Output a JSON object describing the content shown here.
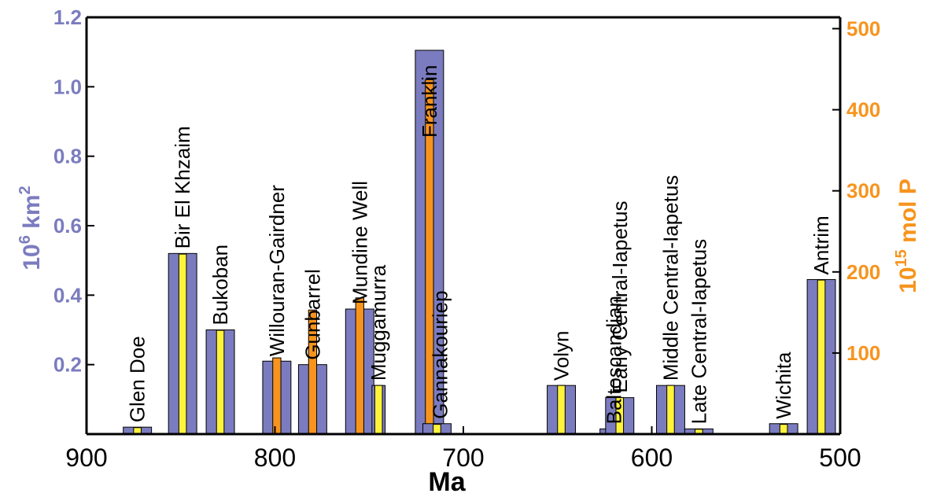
{
  "colors": {
    "area": "#7b7cbf",
    "phosphorus_major": "#f7941d",
    "phosphorus_minor": "#fff33b",
    "left_axis": "#7b7cbf",
    "right_axis": "#f7941d",
    "axis_line": "#000000"
  },
  "chart_data": {
    "type": "bar",
    "xlabel": "Ma",
    "ylabel_left_base": "10",
    "ylabel_left_exp": "6",
    "ylabel_left_unit": " km",
    "ylabel_left_unit_exp": "2",
    "ylabel_right_base": "10",
    "ylabel_right_exp": "15",
    "ylabel_right_unit": " mol P",
    "xlim": [
      900,
      500
    ],
    "ylim_left": [
      0,
      1.2
    ],
    "ylim_right": [
      0,
      514
    ],
    "xticks": [
      900,
      800,
      700,
      600,
      500
    ],
    "yticks_left": [
      0.2,
      0.4,
      0.6,
      0.8,
      1.0,
      1.2
    ],
    "yticks_left_labels": [
      "0.2",
      "0.4",
      "0.6",
      "0.8",
      "1.0",
      "1.2"
    ],
    "yticks_right": [
      100,
      200,
      300,
      400,
      500
    ],
    "yticks_right_labels": [
      "100",
      "200",
      "300",
      "400",
      "500"
    ],
    "series": [
      {
        "name": "",
        "axis": "left"
      },
      {
        "name": "",
        "axis": "right"
      }
    ],
    "provinces": [
      {
        "name": "Glen Doe",
        "age": 873,
        "area_width_ma": 15,
        "area": 0.02,
        "p": 8,
        "p_color": "minor"
      },
      {
        "name": "Bir El Khzaim",
        "age": 849,
        "area_width_ma": 15,
        "area": 0.52,
        "p": 222,
        "p_color": "minor"
      },
      {
        "name": "Bukoban",
        "age": 829,
        "area_width_ma": 15,
        "area": 0.3,
        "p": 128,
        "p_color": "minor"
      },
      {
        "name": "Willouran-Gairdner",
        "age": 799,
        "area_width_ma": 15,
        "area": 0.21,
        "p": 94,
        "p_color": "major"
      },
      {
        "name": "Gunbarrel",
        "age": 780,
        "area_width_ma": 15,
        "area": 0.2,
        "p": 153,
        "p_color": "major"
      },
      {
        "name": "Mundine Well",
        "age": 755,
        "area_width_ma": 15,
        "area": 0.36,
        "p": 168,
        "p_color": "major"
      },
      {
        "name": "Muggamurra",
        "age": 745,
        "area_width_ma": 7,
        "area": 0.14,
        "p": 60,
        "p_color": "minor"
      },
      {
        "name": "Franklin",
        "age": 718,
        "area_width_ma": 15,
        "area": 1.105,
        "p": 437,
        "p_color": "major"
      },
      {
        "name": "Gannakouriep",
        "age": 714,
        "area_width_ma": 15,
        "area": 0.03,
        "p": 12,
        "p_color": "minor"
      },
      {
        "name": "Volyn",
        "age": 648,
        "area_width_ma": 15,
        "area": 0.14,
        "p": 60,
        "p_color": "minor"
      },
      {
        "name": "Baltoscandian",
        "age": 620,
        "area_width_ma": 15,
        "area": 0.015,
        "p": 6,
        "p_color": "minor"
      },
      {
        "name": "Early Central-Iapetus",
        "age": 617,
        "area_width_ma": 15,
        "area": 0.105,
        "p": 45,
        "p_color": "minor"
      },
      {
        "name": "Middle Central-Iapetus",
        "age": 590,
        "area_width_ma": 15,
        "area": 0.14,
        "p": 60,
        "p_color": "minor"
      },
      {
        "name": "Late Central-Iapetus",
        "age": 575,
        "area_width_ma": 15,
        "area": 0.015,
        "p": 6,
        "p_color": "minor"
      },
      {
        "name": "Wichita",
        "age": 530,
        "area_width_ma": 15,
        "area": 0.03,
        "p": 12,
        "p_color": "minor"
      },
      {
        "name": "Antrim",
        "age": 510,
        "area_width_ma": 15,
        "area": 0.445,
        "p": 190,
        "p_color": "minor"
      }
    ]
  }
}
